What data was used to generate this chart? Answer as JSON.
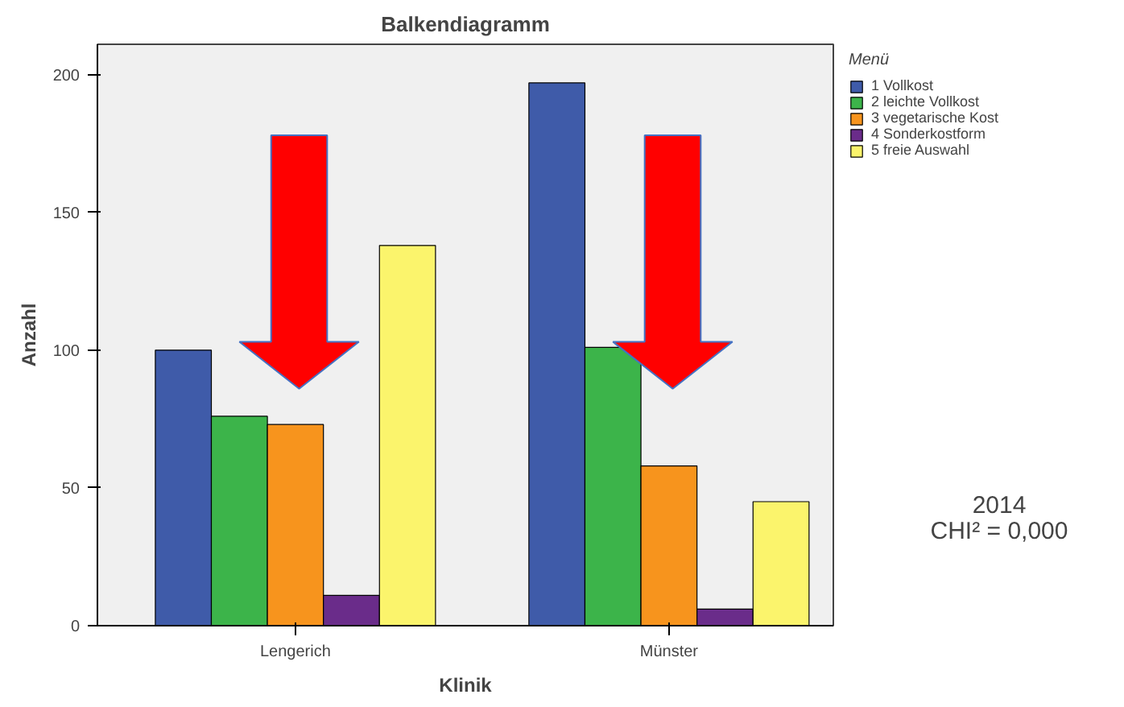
{
  "chart_data": {
    "type": "bar",
    "title": "Balkendiagramm",
    "xlabel": "Klinik",
    "ylabel": "Anzahl",
    "legend_title": "Menü",
    "categories": [
      "Lengerich",
      "Münster"
    ],
    "series": [
      {
        "name": "1 Vollkost",
        "color": "#3f5ba9",
        "values": [
          100,
          197
        ]
      },
      {
        "name": "2 leichte Vollkost",
        "color": "#3cb44a",
        "values": [
          76,
          101
        ]
      },
      {
        "name": "3 vegetarische Kost",
        "color": "#f7941d",
        "values": [
          73,
          58
        ]
      },
      {
        "name": "4 Sonderkostform",
        "color": "#6a2c8a",
        "values": [
          11,
          6
        ]
      },
      {
        "name": "5 freie Auswahl",
        "color": "#fbf46c",
        "values": [
          138,
          45
        ]
      }
    ],
    "ylim": [
      0,
      211
    ],
    "yticks": [
      0,
      50,
      100,
      150,
      200
    ],
    "grid": false,
    "legend": "right",
    "annotations": [
      "2014",
      "CHI² = 0,000"
    ]
  }
}
